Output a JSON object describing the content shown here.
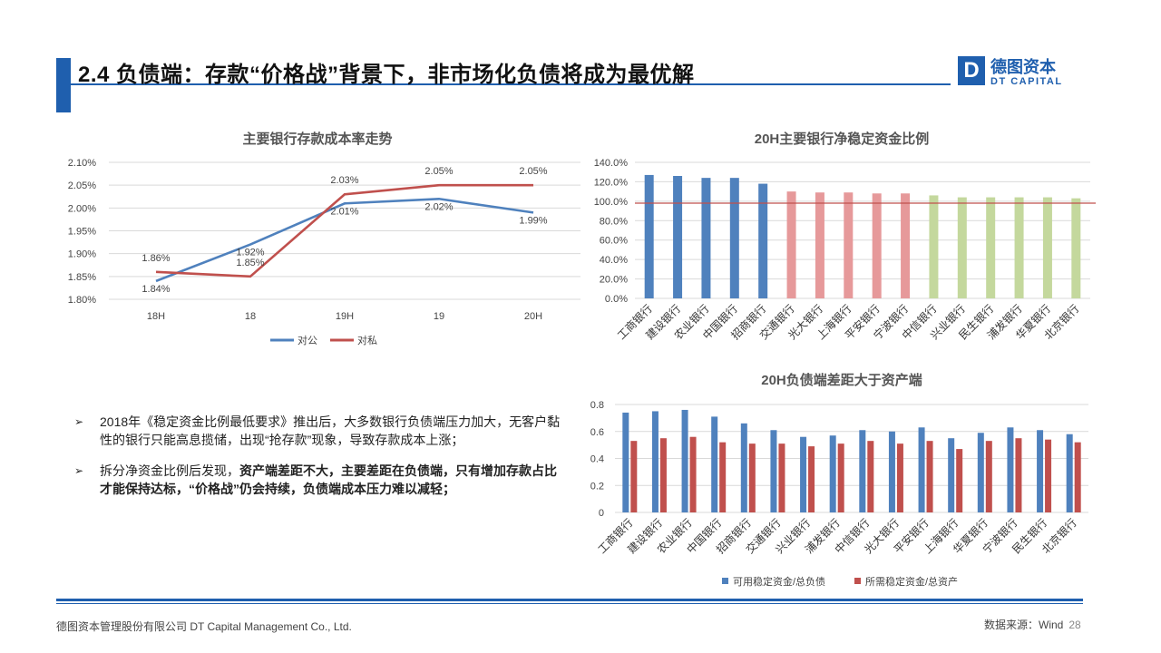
{
  "header": {
    "title": "2.4 负债端：存款“价格战”背景下，非市场化负债将成为最优解",
    "logo_mark": "D",
    "logo_cn": "德图资本",
    "logo_en": "DT CAPITAL"
  },
  "bullets": [
    {
      "marker": "➢",
      "plain": "2018年《稳定资金比例最低要求》推出后，大多数银行负债端压力加大，无客户黏性的银行只能高息揽储，出现“抢存款”现象，导致存款成本上涨；",
      "bold": ""
    },
    {
      "marker": "➢",
      "plain": "拆分净资金比例后发现，",
      "bold": "资产端差距不大，主要差距在负债端，只有增加存款占比才能保持达标，“价格战”仍会持续，负债端成本压力难以减轻；"
    }
  ],
  "footer": {
    "company": "德图资本管理股份有限公司  DT Capital  Management  Co., Ltd.",
    "source": "数据来源：Wind",
    "page": "28"
  },
  "chart_data": [
    {
      "type": "line",
      "title": "主要银行存款成本率走势",
      "categories": [
        "18H",
        "18",
        "19H",
        "19",
        "20H"
      ],
      "ylim": [
        1.8,
        2.1
      ],
      "yticks": [
        "1.80%",
        "1.85%",
        "1.90%",
        "1.95%",
        "2.00%",
        "2.05%",
        "2.10%"
      ],
      "series": [
        {
          "name": "对公",
          "color": "#4f81bd",
          "values": [
            1.84,
            1.92,
            2.01,
            2.02,
            1.99
          ],
          "labels": [
            "1.84%",
            "1.92%",
            "2.01%",
            "2.02%",
            "1.99%"
          ]
        },
        {
          "name": "对私",
          "color": "#c0504d",
          "values": [
            1.86,
            1.85,
            2.03,
            2.05,
            2.05
          ],
          "labels": [
            "1.86%",
            "1.85%",
            "2.03%",
            "2.05%",
            "2.05%"
          ]
        }
      ],
      "legend": "bottom",
      "grid": true
    },
    {
      "type": "bar",
      "title": "20H主要银行净稳定资金比例",
      "categories": [
        "工商银行",
        "建设银行",
        "农业银行",
        "中国银行",
        "招商银行",
        "交通银行",
        "光大银行",
        "上海银行",
        "平安银行",
        "宁波银行",
        "中信银行",
        "兴业银行",
        "民生银行",
        "浦发银行",
        "华夏银行",
        "北京银行"
      ],
      "values": [
        127,
        126,
        124,
        124,
        118,
        110,
        109,
        109,
        108,
        108,
        106,
        104,
        104,
        104,
        104,
        103
      ],
      "colors": [
        "#4f81bd",
        "#4f81bd",
        "#4f81bd",
        "#4f81bd",
        "#4f81bd",
        "#e6999a",
        "#e6999a",
        "#e6999a",
        "#e6999a",
        "#e6999a",
        "#c4d89d",
        "#c4d89d",
        "#c4d89d",
        "#c4d89d",
        "#c4d89d",
        "#c4d89d"
      ],
      "ylim": [
        0,
        140
      ],
      "yticks": [
        "0.0%",
        "20.0%",
        "40.0%",
        "60.0%",
        "80.0%",
        "100.0%",
        "120.0%",
        "140.0%"
      ],
      "reference_line": 98,
      "reference_color": "#c0504d",
      "grid": true
    },
    {
      "type": "bar",
      "title": "20H负债端差距大于资产端",
      "categories": [
        "工商银行",
        "建设银行",
        "农业银行",
        "中国银行",
        "招商银行",
        "交通银行",
        "兴业银行",
        "浦发银行",
        "中信银行",
        "光大银行",
        "平安银行",
        "上海银行",
        "华夏银行",
        "宁波银行",
        "民生银行",
        "北京银行"
      ],
      "series": [
        {
          "name": "可用稳定资金/总负债",
          "color": "#4f81bd",
          "values": [
            0.74,
            0.75,
            0.76,
            0.71,
            0.66,
            0.61,
            0.56,
            0.57,
            0.61,
            0.6,
            0.63,
            0.55,
            0.59,
            0.63,
            0.61,
            0.58
          ]
        },
        {
          "name": "所需稳定资金/总资产",
          "color": "#c0504d",
          "values": [
            0.53,
            0.55,
            0.56,
            0.52,
            0.51,
            0.51,
            0.49,
            0.51,
            0.53,
            0.51,
            0.53,
            0.47,
            0.53,
            0.55,
            0.54,
            0.52
          ]
        }
      ],
      "ylim": [
        0,
        0.8
      ],
      "yticks": [
        "0",
        "0.2",
        "0.4",
        "0.6",
        "0.8"
      ],
      "legend": "bottom",
      "grid": true
    }
  ]
}
